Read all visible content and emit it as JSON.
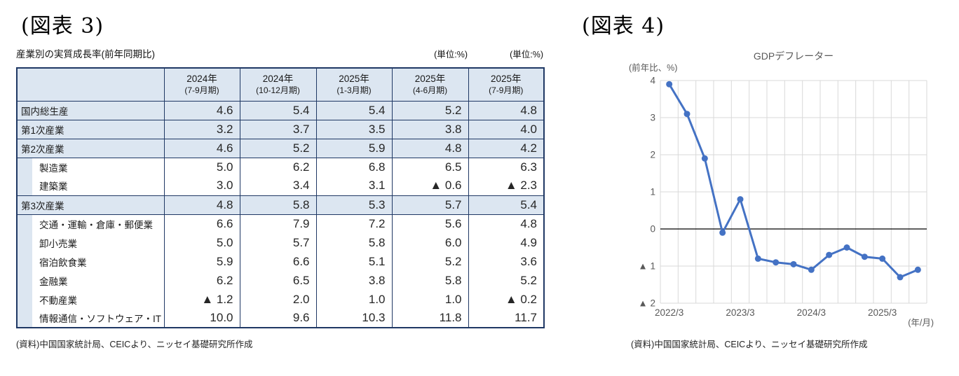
{
  "figure3": {
    "heading": "(図表 3)",
    "table_title": "産業別の実質成長率(前年同期比)",
    "unit_labels": [
      "(単位:%)",
      "(単位:%)"
    ],
    "columns": [
      {
        "year": "2024年",
        "period": "(7-9月期)"
      },
      {
        "year": "2024年",
        "period": "(10-12月期)"
      },
      {
        "year": "2025年",
        "period": "(1-3月期)"
      },
      {
        "year": "2025年",
        "period": "(4-6月期)"
      },
      {
        "year": "2025年",
        "period": "(7-9月期)"
      }
    ],
    "rows": [
      {
        "label": "国内総生産",
        "indent": false,
        "highlight": true,
        "values": [
          "4.6",
          "5.4",
          "5.4",
          "5.2",
          "4.8"
        ]
      },
      {
        "label": "第1次産業",
        "indent": false,
        "highlight": true,
        "values": [
          "3.2",
          "3.7",
          "3.5",
          "3.8",
          "4.0"
        ]
      },
      {
        "label": "第2次産業",
        "indent": false,
        "highlight": true,
        "values": [
          "4.6",
          "5.2",
          "5.9",
          "4.8",
          "4.2"
        ]
      },
      {
        "label": "製造業",
        "indent": true,
        "highlight": false,
        "values": [
          "5.0",
          "6.2",
          "6.8",
          "6.5",
          "6.3"
        ]
      },
      {
        "label": "建築業",
        "indent": true,
        "highlight": false,
        "values": [
          "3.0",
          "3.4",
          "3.1",
          "▲ 0.6",
          "▲ 2.3"
        ]
      },
      {
        "label": "第3次産業",
        "indent": false,
        "highlight": true,
        "values": [
          "4.8",
          "5.8",
          "5.3",
          "5.7",
          "5.4"
        ]
      },
      {
        "label": "交通・運輸・倉庫・郵便業",
        "indent": true,
        "highlight": false,
        "values": [
          "6.6",
          "7.9",
          "7.2",
          "5.6",
          "4.8"
        ]
      },
      {
        "label": "卸小売業",
        "indent": true,
        "highlight": false,
        "values": [
          "5.0",
          "5.7",
          "5.8",
          "6.0",
          "4.9"
        ]
      },
      {
        "label": "宿泊飲食業",
        "indent": true,
        "highlight": false,
        "values": [
          "5.9",
          "6.6",
          "5.1",
          "5.2",
          "3.6"
        ]
      },
      {
        "label": "金融業",
        "indent": true,
        "highlight": false,
        "values": [
          "6.2",
          "6.5",
          "3.8",
          "5.8",
          "5.2"
        ]
      },
      {
        "label": "不動産業",
        "indent": true,
        "highlight": false,
        "values": [
          "▲ 1.2",
          "2.0",
          "1.0",
          "1.0",
          "▲ 0.2"
        ]
      },
      {
        "label": "情報通信・ソフトウェア・IT",
        "indent": true,
        "highlight": false,
        "values": [
          "10.0",
          "9.6",
          "10.3",
          "11.8",
          "11.7"
        ]
      }
    ],
    "source": "(資料)中国国家統計局、CEICより、ニッセイ基礎研究所作成"
  },
  "figure4": {
    "heading": "(図表 4)",
    "source": "(資料)中国国家統計局、CEICより、ニッセイ基礎研究所作成"
  },
  "chart_data": {
    "type": "line",
    "title": "GDPデフレーター",
    "y_axis_unit": "(前年比、%)",
    "x_axis_unit": "(年/月)",
    "x": [
      "2022/3",
      "2022/6",
      "2022/9",
      "2022/12",
      "2023/3",
      "2023/6",
      "2023/9",
      "2023/12",
      "2024/3",
      "2024/6",
      "2024/9",
      "2024/12",
      "2025/3",
      "2025/6",
      "2025/9"
    ],
    "values": [
      3.9,
      3.1,
      1.9,
      -0.1,
      0.8,
      -0.8,
      -0.9,
      -0.95,
      -1.1,
      -0.7,
      -0.5,
      -0.75,
      -0.8,
      -1.3,
      -1.1
    ],
    "ylim": [
      -2,
      4
    ],
    "y_ticks": [
      {
        "value": 4,
        "label": "4"
      },
      {
        "value": 3,
        "label": "3"
      },
      {
        "value": 2,
        "label": "2"
      },
      {
        "value": 1,
        "label": "1"
      },
      {
        "value": 0,
        "label": "0"
      },
      {
        "value": -1,
        "label": "▲ 1"
      },
      {
        "value": -2,
        "label": "▲ 2"
      }
    ],
    "x_tick_labels": [
      {
        "index": 0,
        "label": "2022/3"
      },
      {
        "index": 4,
        "label": "2023/3"
      },
      {
        "index": 8,
        "label": "2024/3"
      },
      {
        "index": 12,
        "label": "2025/3"
      }
    ],
    "grid": true,
    "legend": "none",
    "line_color": "#4472c4",
    "zero_line_color": "#000000",
    "grid_color": "#d9d9d9"
  },
  "colors": {
    "table_fill_blue": "#dce6f1",
    "table_border_navy": "#1f3864",
    "chart_line_blue": "#4472c4"
  }
}
